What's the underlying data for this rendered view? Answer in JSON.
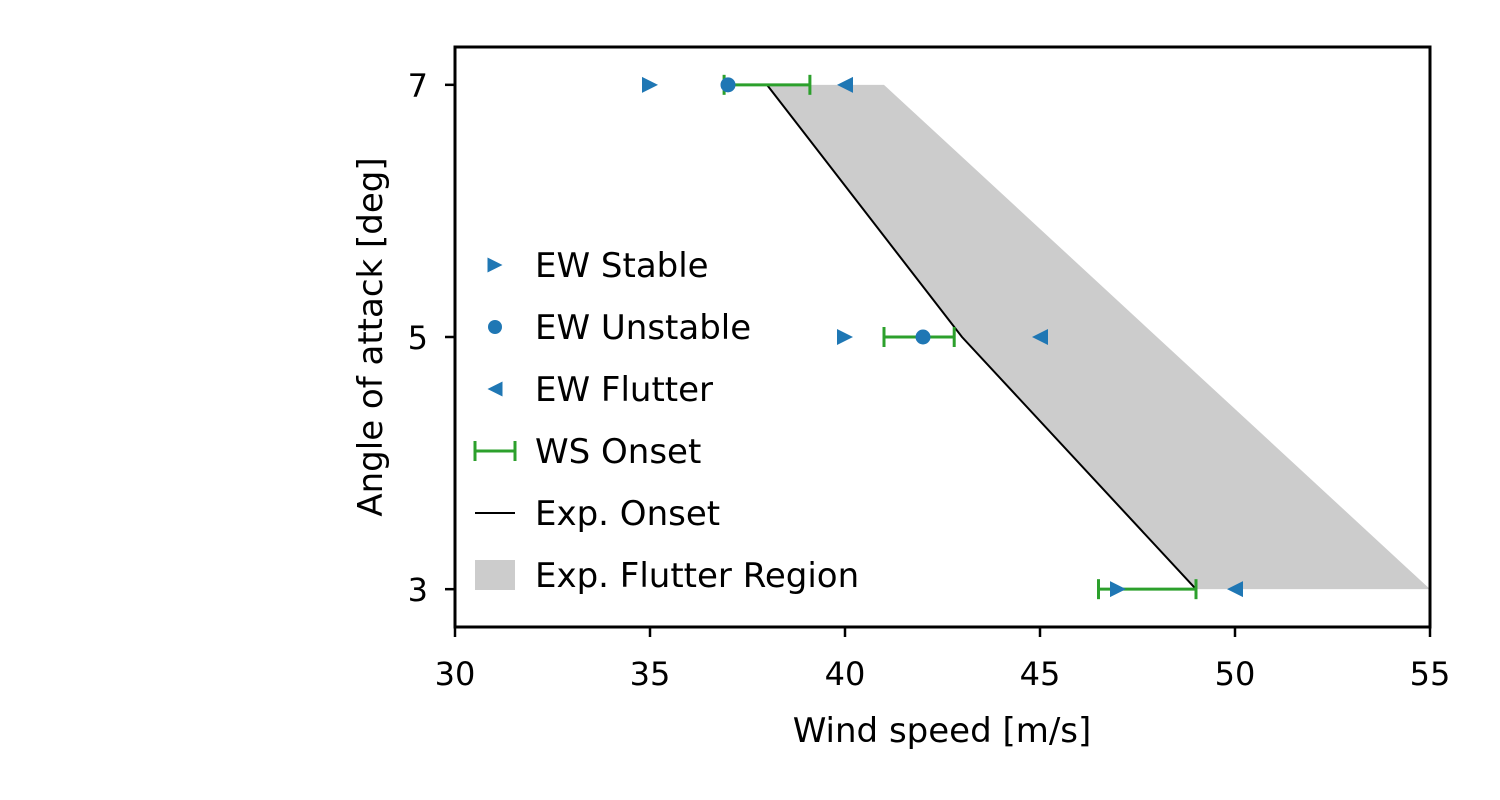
{
  "chart_data": {
    "type": "scatter",
    "xlabel": "Wind speed [m/s]",
    "ylabel": "Angle of attack [deg]",
    "xlim": [
      30,
      55
    ],
    "ylim": [
      2.7,
      7.3
    ],
    "x_ticks": [
      "30",
      "35",
      "40",
      "45",
      "50",
      "55"
    ],
    "y_ticks": [
      "3",
      "5",
      "7"
    ],
    "grid": false,
    "legend_position": "center-left",
    "series": [
      {
        "name": "EW Stable",
        "kind": "marker",
        "marker": "triangle-right",
        "color": "#1f77b4",
        "points": [
          {
            "x": 35,
            "y": 7
          },
          {
            "x": 40,
            "y": 5
          },
          {
            "x": 47,
            "y": 3
          }
        ]
      },
      {
        "name": "EW Unstable",
        "kind": "marker",
        "marker": "circle",
        "color": "#1f77b4",
        "points": [
          {
            "x": 37,
            "y": 7
          },
          {
            "x": 42,
            "y": 5
          }
        ]
      },
      {
        "name": "EW Flutter",
        "kind": "marker",
        "marker": "triangle-left",
        "color": "#1f77b4",
        "points": [
          {
            "x": 40,
            "y": 7
          },
          {
            "x": 45,
            "y": 5
          },
          {
            "x": 50,
            "y": 3
          }
        ]
      },
      {
        "name": "WS Onset",
        "kind": "xerror",
        "color": "#2ca02c",
        "intervals": [
          {
            "y": 7,
            "xmin": 36.9,
            "xmax": 39.1
          },
          {
            "y": 5,
            "xmin": 41.0,
            "xmax": 42.8
          },
          {
            "y": 3,
            "xmin": 46.5,
            "xmax": 49.0
          }
        ]
      },
      {
        "name": "Exp. Onset",
        "kind": "line",
        "color": "#000000",
        "points": [
          {
            "x": 38,
            "y": 7
          },
          {
            "x": 43,
            "y": 5
          },
          {
            "x": 49,
            "y": 3
          }
        ]
      },
      {
        "name": "Exp. Flutter Region",
        "kind": "area",
        "color": "#cccccc",
        "lower": [
          {
            "x": 38,
            "y": 7
          },
          {
            "x": 43,
            "y": 5
          },
          {
            "x": 49,
            "y": 3
          }
        ],
        "upper": [
          {
            "x": 41,
            "y": 7
          },
          {
            "x": 55,
            "y": 3
          }
        ]
      }
    ]
  }
}
